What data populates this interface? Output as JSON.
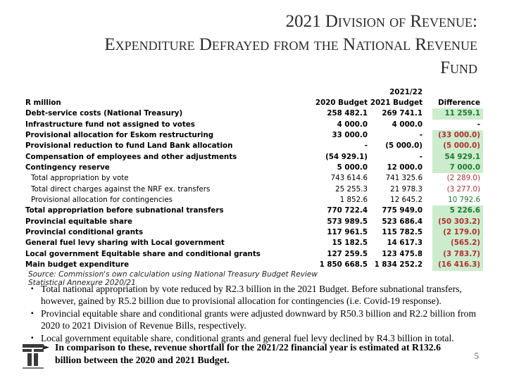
{
  "title": {
    "line1": "2021 Division of Revenue:",
    "line2": "Expenditure Defrayed from the National Revenue",
    "line3": "Fund"
  },
  "table": {
    "header_year": "2021/22",
    "col_label": "R million",
    "col1": "2020 Budget",
    "col2": "2021 Budget",
    "col3": "Difference",
    "rows": [
      {
        "label": "Debt-service costs (National Treasury)",
        "v1": "258 482.1",
        "v2": "269 741.1",
        "diff": "11 259.1"
      },
      {
        "label": "Infrastructure fund not assigned to votes",
        "v1": "4 000.0",
        "v2": "4 000.0",
        "diff": "-"
      },
      {
        "label": "Provisional allocation for Eskom restructuring",
        "v1": "33 000.0",
        "v2": "-",
        "diff": "(33 000.0)"
      },
      {
        "label": "Provisional reduction to fund Land Bank allocation",
        "v1": "-",
        "v2": "(5 000.0)",
        "diff": "(5 000.0)"
      },
      {
        "label": "Compensation of employees and other adjustments",
        "v1": "(54 929.1)",
        "v2": "-",
        "diff": "54 929.1"
      },
      {
        "label": "Contingency reserve",
        "v1": "5 000.0",
        "v2": "12 000.0",
        "diff": "7 000.0"
      },
      {
        "label": "Total appropriation by vote",
        "v1": "743 614.6",
        "v2": "741 325.6",
        "diff": "(2 289.0)"
      },
      {
        "label": "Total direct charges against the NRF ex. transfers",
        "v1": "25 255.3",
        "v2": "21 978.3",
        "diff": "(3 277.0)"
      },
      {
        "label": "Provisional allocation for contingencies",
        "v1": "1 852.6",
        "v2": "12 645.2",
        "diff": "10 792.6"
      },
      {
        "label": "Total appropriation before subnational transfers",
        "v1": "770 722.4",
        "v2": "775 949.0",
        "diff": "5 226.6"
      },
      {
        "label": "Provincial equitable share",
        "v1": "573 989.5",
        "v2": "523 686.4",
        "diff": "(50 303.2)"
      },
      {
        "label": "Provincial conditional grants",
        "v1": "117 961.5",
        "v2": "115 782.5",
        "diff": "(2 179.0)"
      },
      {
        "label": "General fuel levy sharing with Local government",
        "v1": "15 182.5",
        "v2": "14 617.3",
        "diff": "(565.2)"
      },
      {
        "label": "Local government Equitable share and conditional grants",
        "v1": "127 259.5",
        "v2": "123 475.8",
        "diff": "(3 783.7)"
      },
      {
        "label": "Main budget expenditure",
        "v1": "1 850 668.5",
        "v2": "1 834 252.2",
        "diff": "(16 416.3)"
      }
    ]
  },
  "source": {
    "line1": "Source: Commission's own calculation using National Treasury Budget Review",
    "line2": "Statistical Annexure 2020/21"
  },
  "bullets": [
    "Total national appropriation by vote reduced by R2.3 billion in the 2021 Budget. Before subnational transfers, however, gained by R5.2 billion due to provisional allocation for contingencies (i.e. Covid-19 response).",
    "Provincial equitable share and conditional grants were adjusted downward by R50.3 billion and R2.2 billion from 2020 to 2021 Division of Revenue Bills, respectively.",
    "Local government equitable share, conditional grants and general fuel levy declined by R4.3 billion in total."
  ],
  "conclusion": "In comparison to these, revenue shortfall for the 2021/22 financial year is estimated at R132.6 billion between the 2020 and 2021 Budget.",
  "arrow_icon": "➢",
  "bullet_icon": "▪",
  "page_number": "5",
  "colors": {
    "negative": "#b03030",
    "positive": "#1a7a2a",
    "highlight": "#cdeccd"
  }
}
